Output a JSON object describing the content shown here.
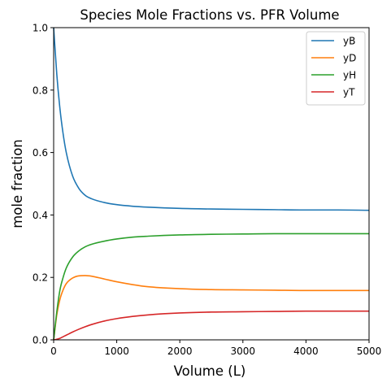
{
  "chart_data": {
    "type": "line",
    "title": "Species Mole Fractions vs. PFR Volume",
    "xlabel": "Volume (L)",
    "ylabel": "mole fraction",
    "xlim": [
      0,
      5000
    ],
    "ylim": [
      0,
      1.0
    ],
    "xticks": [
      0,
      1000,
      2000,
      3000,
      4000,
      5000
    ],
    "yticks": [
      0.0,
      0.2,
      0.4,
      0.6,
      0.8,
      1.0
    ],
    "xtick_labels": [
      "0",
      "1000",
      "2000",
      "3000",
      "4000",
      "5000"
    ],
    "ytick_labels": [
      "0.0",
      "0.2",
      "0.4",
      "0.6",
      "0.8",
      "1.0"
    ],
    "grid": false,
    "legend_position": "top-right",
    "x": [
      0,
      50,
      100,
      150,
      200,
      300,
      400,
      500,
      600,
      800,
      1000,
      1250,
      1500,
      2000,
      2500,
      3000,
      3500,
      4000,
      4500,
      5000
    ],
    "series": [
      {
        "name": "yB",
        "color": "#1f77b4",
        "values": [
          1.0,
          0.85,
          0.74,
          0.66,
          0.6,
          0.525,
          0.485,
          0.463,
          0.452,
          0.44,
          0.433,
          0.428,
          0.425,
          0.421,
          0.419,
          0.418,
          0.417,
          0.416,
          0.416,
          0.415
        ]
      },
      {
        "name": "yD",
        "color": "#ff7f0e",
        "values": [
          0.0,
          0.08,
          0.13,
          0.16,
          0.18,
          0.198,
          0.205,
          0.206,
          0.204,
          0.195,
          0.186,
          0.177,
          0.17,
          0.164,
          0.161,
          0.16,
          0.159,
          0.158,
          0.158,
          0.158
        ]
      },
      {
        "name": "yH",
        "color": "#2ca02c",
        "values": [
          0.0,
          0.09,
          0.16,
          0.2,
          0.23,
          0.265,
          0.285,
          0.298,
          0.306,
          0.316,
          0.323,
          0.329,
          0.332,
          0.336,
          0.338,
          0.339,
          0.34,
          0.34,
          0.34,
          0.34
        ]
      },
      {
        "name": "yT",
        "color": "#d62728",
        "values": [
          0.0,
          0.002,
          0.005,
          0.01,
          0.015,
          0.025,
          0.034,
          0.042,
          0.049,
          0.06,
          0.068,
          0.075,
          0.08,
          0.086,
          0.089,
          0.09,
          0.091,
          0.092,
          0.092,
          0.092
        ]
      }
    ]
  }
}
